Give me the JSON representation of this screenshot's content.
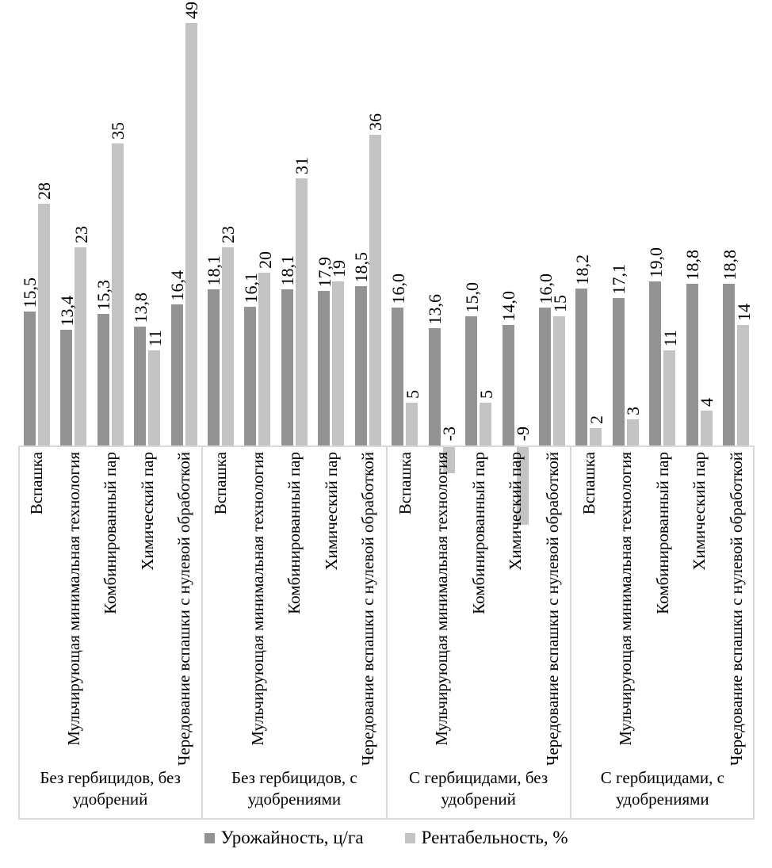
{
  "chart_data": {
    "type": "bar",
    "title": "",
    "categories": [
      "Вспашка",
      "Мульчирующая минимальная технология",
      "Комбинированный пар",
      "Химический пар",
      "Чередование вспашки с нулевой обработкой"
    ],
    "group_labels": [
      "Без гербицидов, без удобрений",
      "Без гербицидов, с удобрениями",
      "С гербицидами, без удобрений",
      "С гербицидами, с удобрениями"
    ],
    "series": [
      {
        "name": "Урожайность, ц/га",
        "color": "#939393",
        "label_decimals": 1,
        "values_by_group": [
          [
            15.5,
            13.4,
            15.3,
            13.8,
            16.4
          ],
          [
            18.1,
            16.1,
            18.1,
            17.9,
            18.5
          ],
          [
            16.0,
            13.6,
            15.0,
            14.0,
            16.0
          ],
          [
            18.2,
            17.1,
            19.0,
            18.8,
            18.8
          ]
        ]
      },
      {
        "name": "Рентабельность, %",
        "color": "#c3c3c3",
        "label_decimals": 0,
        "values_by_group": [
          [
            28,
            23,
            35,
            11,
            49
          ],
          [
            23,
            20,
            31,
            19,
            36
          ],
          [
            5,
            -3,
            5,
            -9,
            15
          ],
          [
            2,
            3,
            11,
            4,
            14
          ]
        ]
      }
    ],
    "value_axis": {
      "min": -9,
      "max": 49,
      "gridlines": false,
      "axis_labels_visible": false
    },
    "legend_position": "bottom",
    "decimal_separator": ","
  },
  "legend": {
    "items": [
      {
        "label": "Урожайность, ц/га",
        "color": "#939393"
      },
      {
        "label": "Рентабельность, %",
        "color": "#c3c3c3"
      }
    ]
  },
  "colors": {
    "series1": "#939393",
    "series2": "#c3c3c3",
    "axis_line": "#d9d9d9",
    "text": "#000000",
    "background": "#ffffff"
  }
}
